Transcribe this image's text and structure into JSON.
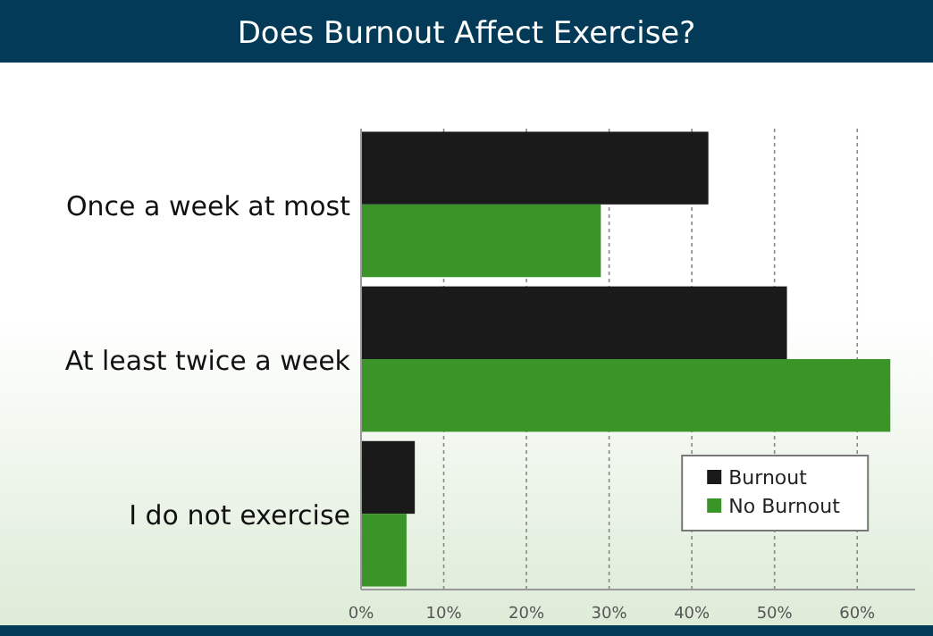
{
  "chart_data": {
    "type": "bar",
    "orientation": "horizontal",
    "title": "Does Burnout Affect Exercise?",
    "categories": [
      "Once a week at most",
      "At least twice a week",
      "I do not exercise"
    ],
    "series": [
      {
        "name": "Burnout",
        "color": "#1a1a1a",
        "values": [
          42,
          51.5,
          6.5
        ]
      },
      {
        "name": "No Burnout",
        "color": "#3a9428",
        "values": [
          29,
          64,
          5.5
        ]
      }
    ],
    "xlim": [
      0,
      67
    ],
    "xticks": [
      {
        "value": 0,
        "label": "0%"
      },
      {
        "value": 10,
        "label": "10%"
      },
      {
        "value": 20,
        "label": "20%"
      },
      {
        "value": 30,
        "label": "30%"
      },
      {
        "value": 40,
        "label": "40%"
      },
      {
        "value": 50,
        "label": "50%"
      },
      {
        "value": 60,
        "label": "60%"
      }
    ],
    "grid": "x",
    "legend": "bottom right"
  }
}
